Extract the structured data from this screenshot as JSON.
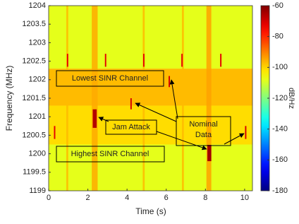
{
  "chart_data": {
    "type": "heatmap",
    "xlabel": "Time (s)",
    "ylabel": "Frequency (MHz)",
    "xlim": [
      0,
      10.4
    ],
    "ylim": [
      1199,
      1204
    ],
    "xticks": [
      0,
      2,
      4,
      6,
      8,
      10
    ],
    "yticks": [
      1199,
      1199.5,
      1200,
      1200.5,
      1201,
      1201.5,
      1202,
      1202.5,
      1203,
      1203.5,
      1204
    ],
    "colormap": "jet",
    "colorbar": {
      "label": "dB/Hz",
      "lim": [
        -180,
        -60
      ],
      "ticks": [
        -180,
        -160,
        -140,
        -120,
        -100,
        -80,
        -60
      ]
    },
    "bands": [
      {
        "y": [
          1199,
          1200.25
        ],
        "value": -108
      },
      {
        "y": [
          1200.25,
          1201.3
        ],
        "value": -101
      },
      {
        "y": [
          1201.3,
          1202.3
        ],
        "value": -97
      },
      {
        "y": [
          1202.3,
          1204
        ],
        "value": -108
      }
    ],
    "stripes": [
      {
        "x": [
          0.9,
          1.0
        ],
        "value": -97
      },
      {
        "x": [
          2.2,
          2.5
        ],
        "value": -95
      },
      {
        "x": [
          4.8,
          4.9
        ],
        "value": -97
      },
      {
        "x": [
          6.8,
          6.9
        ],
        "value": -97
      },
      {
        "x": [
          8.05,
          8.3
        ],
        "value": -94
      }
    ],
    "bursts": [
      {
        "x": [
          0.93,
          1.0
        ],
        "y": [
          1202.35,
          1202.7
        ],
        "value": -72
      },
      {
        "x": [
          2.87,
          2.94
        ],
        "y": [
          1202.35,
          1202.7
        ],
        "value": -72
      },
      {
        "x": [
          4.82,
          4.89
        ],
        "y": [
          1202.35,
          1202.7
        ],
        "value": -72
      },
      {
        "x": [
          6.77,
          6.84
        ],
        "y": [
          1202.35,
          1202.7
        ],
        "value": -72
      },
      {
        "x": [
          8.75,
          8.82
        ],
        "y": [
          1202.35,
          1202.7
        ],
        "value": -72
      },
      {
        "x": [
          6.12,
          6.19
        ],
        "y": [
          1201.8,
          1202.1
        ],
        "value": -70
      },
      {
        "x": [
          4.17,
          4.24
        ],
        "y": [
          1201.2,
          1201.5
        ],
        "value": -70
      },
      {
        "x": [
          0.27,
          0.34
        ],
        "y": [
          1200.4,
          1200.75
        ],
        "value": -72
      },
      {
        "x": [
          10.02,
          10.09
        ],
        "y": [
          1200.4,
          1200.75
        ],
        "value": -70
      },
      {
        "x": [
          2.25,
          2.45
        ],
        "y": [
          1200.7,
          1201.2
        ],
        "value": -66
      },
      {
        "x": [
          8.1,
          8.3
        ],
        "y": [
          1199.8,
          1200.24
        ],
        "value": -64
      }
    ],
    "annotations": [
      "Lowest SINR Channel",
      "Nominal Data",
      "Jam Attack",
      "Highest SINR Channel"
    ]
  }
}
